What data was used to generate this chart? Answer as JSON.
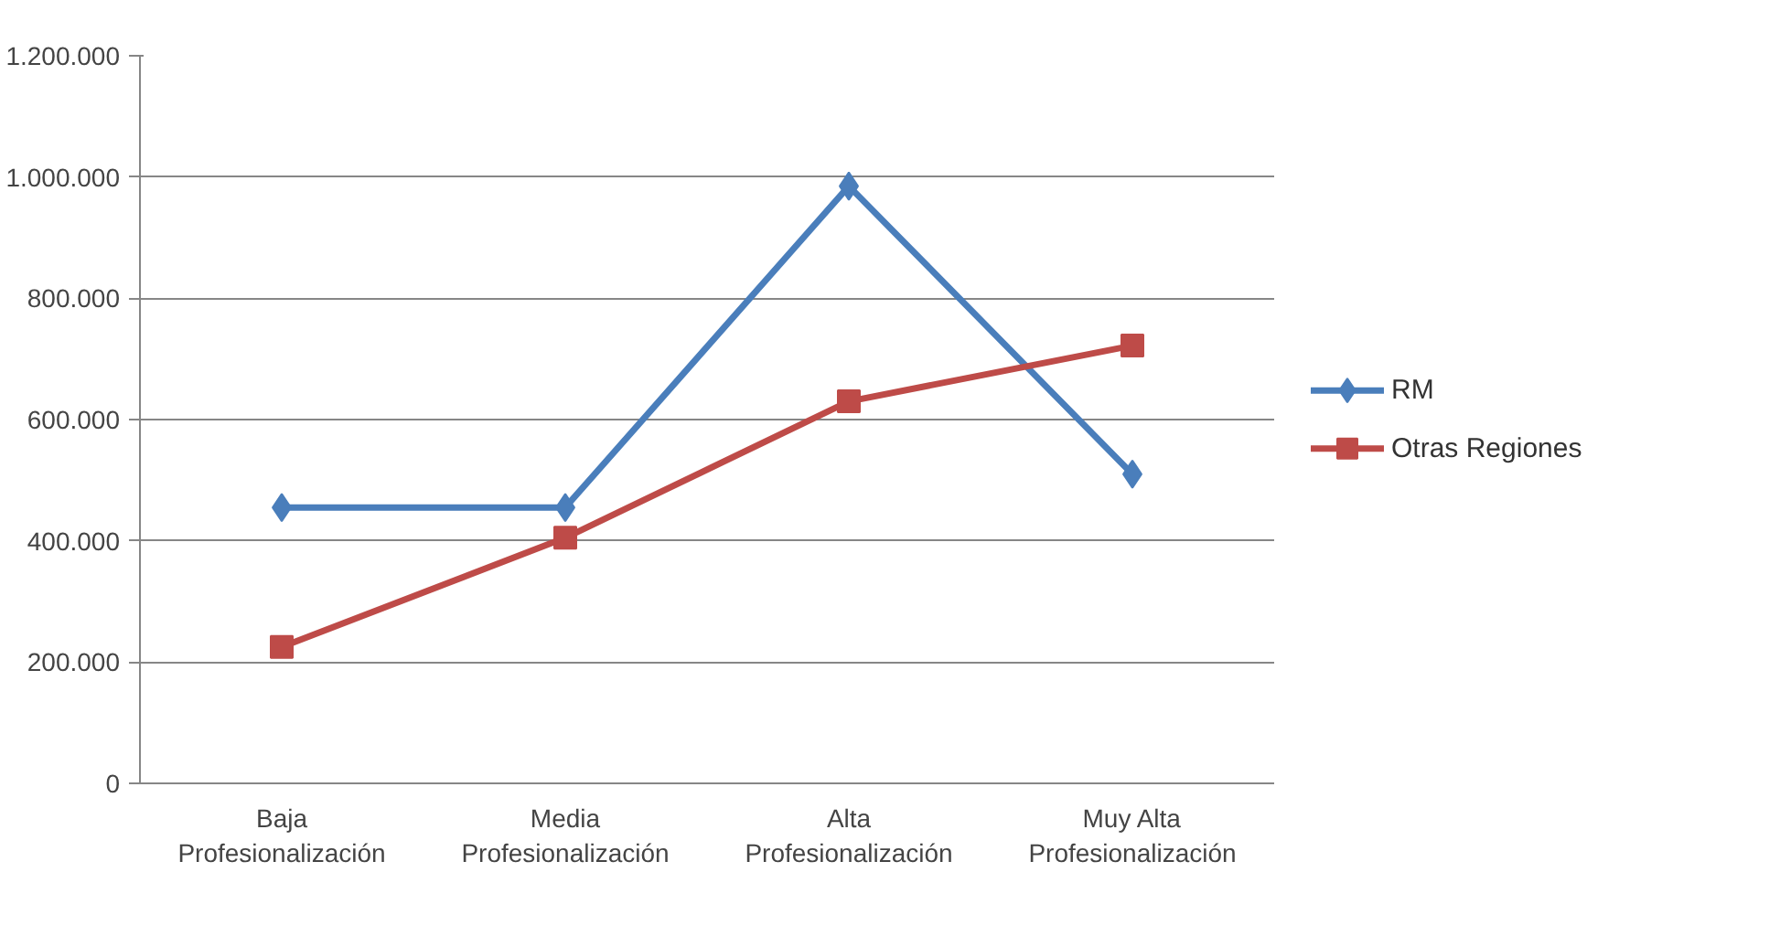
{
  "chart_data": {
    "type": "line",
    "categories": [
      "Baja Profesionalización",
      "Media Profesionalización",
      "Alta Profesionalización",
      "Muy Alta Profesionalización"
    ],
    "series": [
      {
        "name": "RM",
        "color": "#4a7ebb",
        "marker": "diamond",
        "values": [
          455000,
          455000,
          985000,
          510000
        ]
      },
      {
        "name": "Otras Regiones",
        "color": "#be4b48",
        "marker": "square",
        "values": [
          225000,
          405000,
          630000,
          722000
        ]
      }
    ],
    "ylim": [
      0,
      1200000
    ],
    "yticks": [
      {
        "value": 0,
        "label": "0"
      },
      {
        "value": 200000,
        "label": "200.000"
      },
      {
        "value": 400000,
        "label": "400.000"
      },
      {
        "value": 600000,
        "label": "600.000"
      },
      {
        "value": 800000,
        "label": "800.000"
      },
      {
        "value": 1000000,
        "label": "1.000.000"
      },
      {
        "value": 1200000,
        "label": "1.200.000"
      }
    ],
    "grid": "y",
    "legend": "right",
    "line_style": "solid"
  }
}
